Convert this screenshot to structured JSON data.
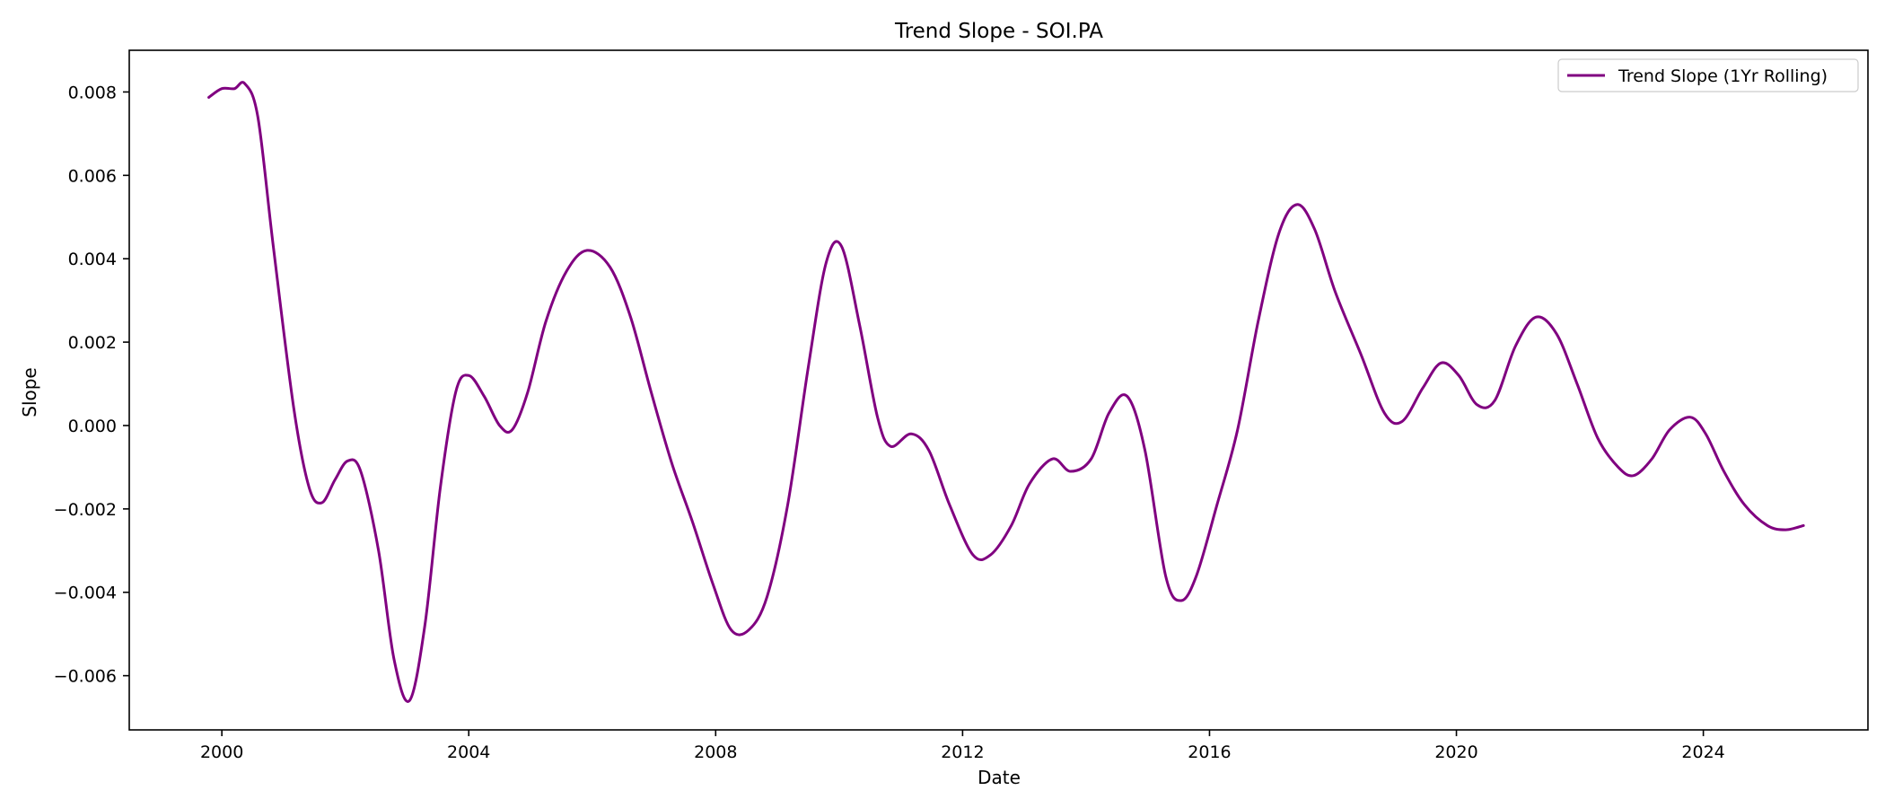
{
  "chart_data": {
    "type": "line",
    "title": "Trend Slope - SOI.PA",
    "xlabel": "Date",
    "ylabel": "Slope",
    "xlim": [
      "1998-07-01",
      "2026-09-01"
    ],
    "ylim": [
      -0.0073,
      0.009
    ],
    "x_ticks": [
      "2000",
      "2004",
      "2008",
      "2012",
      "2016",
      "2020",
      "2024"
    ],
    "y_ticks": [
      "0.008",
      "0.006",
      "0.004",
      "0.002",
      "0.000",
      "−0.002",
      "−0.004",
      "−0.006"
    ],
    "grid": false,
    "legend_position": "top-right",
    "series": [
      {
        "name": "Trend Slope (1Yr Rolling)",
        "color": "#800080",
        "points": [
          [
            "1999-10-15",
            0.00787
          ],
          [
            "2000-01-01",
            0.00808
          ],
          [
            "2000-03-15",
            0.00808
          ],
          [
            "2000-05-15",
            0.0082
          ],
          [
            "2000-08-01",
            0.0074
          ],
          [
            "2000-11-01",
            0.0043
          ],
          [
            "2001-03-01",
            0.0004
          ],
          [
            "2001-06-01",
            -0.0015
          ],
          [
            "2001-08-15",
            -0.00185
          ],
          [
            "2001-11-01",
            -0.0013
          ],
          [
            "2002-01-15",
            -0.00085
          ],
          [
            "2002-04-01",
            -0.0011
          ],
          [
            "2002-07-15",
            -0.003
          ],
          [
            "2002-10-15",
            -0.0056
          ],
          [
            "2003-01-15",
            -0.0066
          ],
          [
            "2003-04-15",
            -0.0048
          ],
          [
            "2003-07-15",
            -0.0015
          ],
          [
            "2003-10-15",
            0.0008
          ],
          [
            "2004-01-01",
            0.0012
          ],
          [
            "2004-04-01",
            0.0007
          ],
          [
            "2004-07-01",
            0.0
          ],
          [
            "2004-09-15",
            -0.0001
          ],
          [
            "2004-12-15",
            0.0008
          ],
          [
            "2005-04-01",
            0.0025
          ],
          [
            "2005-08-01",
            0.0037
          ],
          [
            "2005-12-01",
            0.0042
          ],
          [
            "2006-04-15",
            0.0038
          ],
          [
            "2006-08-15",
            0.0026
          ],
          [
            "2006-12-15",
            0.0008
          ],
          [
            "2007-04-15",
            -0.0009
          ],
          [
            "2007-08-15",
            -0.0023
          ],
          [
            "2007-12-15",
            -0.0038
          ],
          [
            "2008-04-01",
            -0.0049
          ],
          [
            "2008-07-15",
            -0.0049
          ],
          [
            "2008-11-01",
            -0.0041
          ],
          [
            "2009-03-01",
            -0.0019
          ],
          [
            "2009-07-01",
            0.0014
          ],
          [
            "2009-10-15",
            0.0039
          ],
          [
            "2010-01-15",
            0.0043
          ],
          [
            "2010-05-01",
            0.0024
          ],
          [
            "2010-08-15",
            0.0002
          ],
          [
            "2010-11-01",
            -0.0005
          ],
          [
            "2011-03-01",
            -0.0002
          ],
          [
            "2011-06-15",
            -0.0006
          ],
          [
            "2011-10-15",
            -0.0019
          ],
          [
            "2012-03-01",
            -0.0031
          ],
          [
            "2012-06-15",
            -0.0031
          ],
          [
            "2012-10-15",
            -0.0024
          ],
          [
            "2013-02-01",
            -0.0014
          ],
          [
            "2013-06-15",
            -0.0008
          ],
          [
            "2013-10-01",
            -0.0011
          ],
          [
            "2014-02-01",
            -0.0008
          ],
          [
            "2014-05-15",
            0.0003
          ],
          [
            "2014-09-01",
            0.0007
          ],
          [
            "2014-12-15",
            -0.0006
          ],
          [
            "2015-04-15",
            -0.0036
          ],
          [
            "2015-07-15",
            -0.0042
          ],
          [
            "2015-10-15",
            -0.0036
          ],
          [
            "2016-02-15",
            -0.0019
          ],
          [
            "2016-06-15",
            -0.0001
          ],
          [
            "2016-10-15",
            0.0025
          ],
          [
            "2017-02-15",
            0.0046
          ],
          [
            "2017-06-01",
            0.0053
          ],
          [
            "2017-09-15",
            0.0047
          ],
          [
            "2018-01-15",
            0.0032
          ],
          [
            "2018-06-15",
            0.0017
          ],
          [
            "2018-11-01",
            0.0003
          ],
          [
            "2019-02-15",
            0.0001
          ],
          [
            "2019-06-15",
            0.0009
          ],
          [
            "2019-10-01",
            0.0015
          ],
          [
            "2020-01-15",
            0.0012
          ],
          [
            "2020-05-01",
            0.0005
          ],
          [
            "2020-08-15",
            0.0006
          ],
          [
            "2020-12-15",
            0.0019
          ],
          [
            "2021-04-15",
            0.0026
          ],
          [
            "2021-08-15",
            0.0022
          ],
          [
            "2021-12-15",
            0.001
          ],
          [
            "2022-04-15",
            -0.0003
          ],
          [
            "2022-08-15",
            -0.001
          ],
          [
            "2022-11-15",
            -0.0012
          ],
          [
            "2023-03-01",
            -0.0008
          ],
          [
            "2023-06-15",
            -0.0001
          ],
          [
            "2023-10-15",
            0.0002
          ],
          [
            "2024-01-15",
            -0.0002
          ],
          [
            "2024-05-01",
            -0.0011
          ],
          [
            "2024-09-01",
            -0.0019
          ],
          [
            "2025-01-15",
            -0.0024
          ],
          [
            "2025-05-01",
            -0.0025
          ],
          [
            "2025-08-15",
            -0.0024
          ]
        ]
      }
    ]
  }
}
